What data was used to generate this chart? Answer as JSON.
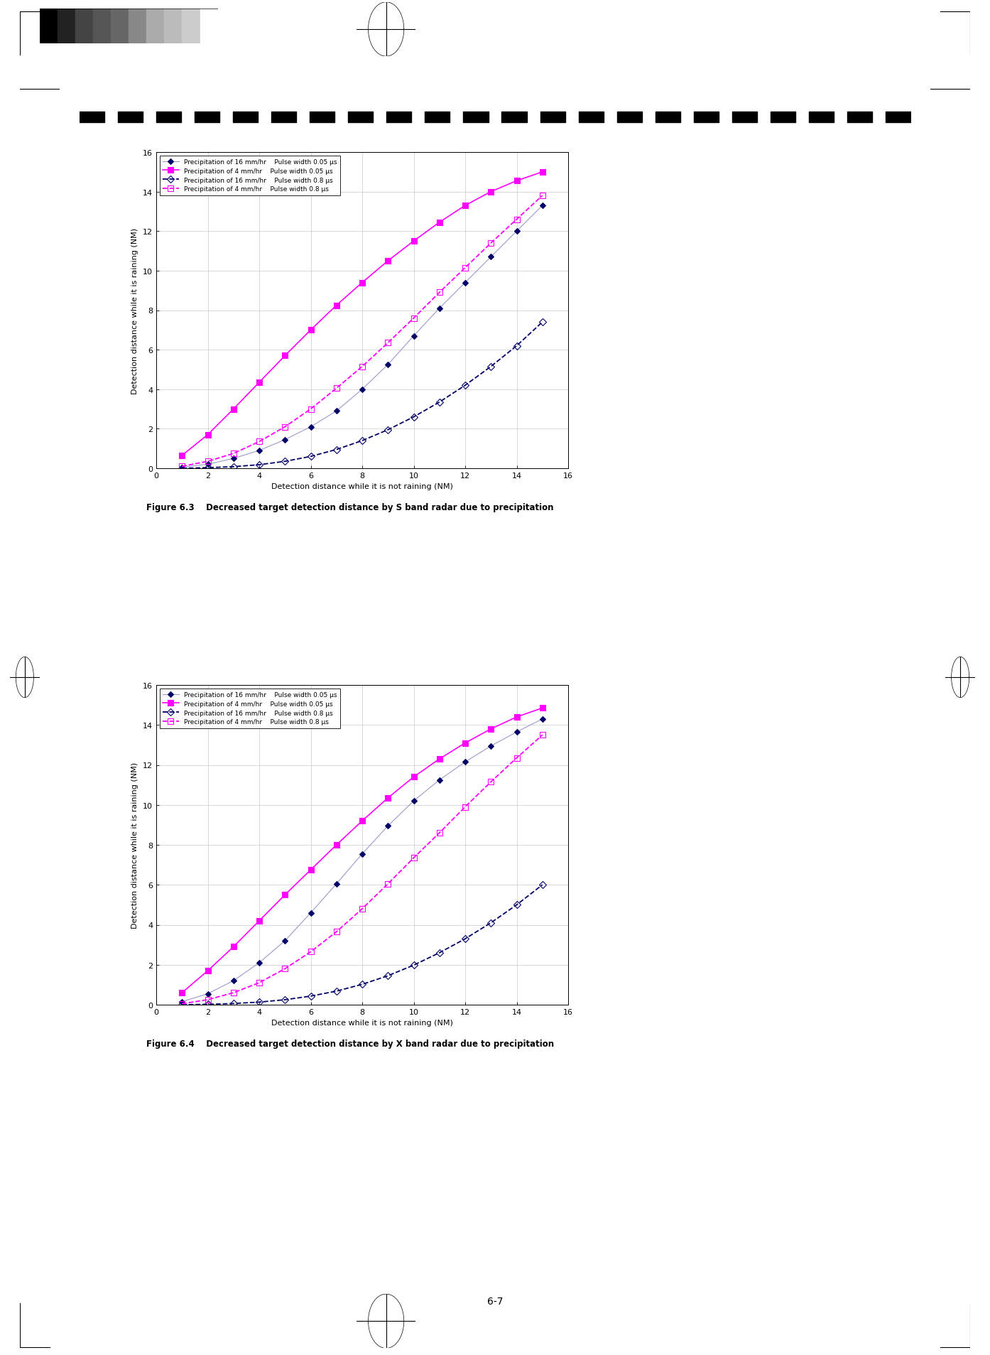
{
  "fig_width": 13.94,
  "fig_height": 19.08,
  "background_color": "#ffffff",
  "page_number": "6-7",
  "chart1": {
    "title": "Figure 6.3    Decreased target detection distance by S band radar due to precipitation",
    "xlabel": "Detection distance while it is not raining (NM)",
    "ylabel": "Detection distance while it is raining (NM)",
    "xlim": [
      0,
      16
    ],
    "ylim": [
      0,
      16
    ],
    "xticks": [
      0,
      2,
      4,
      6,
      8,
      10,
      12,
      14,
      16
    ],
    "yticks": [
      0,
      2,
      4,
      6,
      8,
      10,
      12,
      14,
      16
    ],
    "series": [
      {
        "label": "Precipitation of 16 mm/hr    Pulse width 0.05 μs",
        "color": "#9999cc",
        "linestyle": "solid",
        "linewidth": 0.8,
        "marker": "D",
        "markersize": 4,
        "markerfacecolor": "#000066",
        "markeredgecolor": "#000066",
        "x": [
          1,
          2,
          3,
          4,
          5,
          6,
          7,
          8,
          9,
          10,
          11,
          12,
          13,
          14,
          15
        ],
        "y": [
          0.05,
          0.2,
          0.5,
          0.9,
          1.45,
          2.1,
          2.9,
          4.0,
          5.25,
          6.7,
          8.1,
          9.4,
          10.7,
          12.0,
          13.3
        ]
      },
      {
        "label": "Precipitation of 4 mm/hr    Pulse width 0.05 μs",
        "color": "#FF00FF",
        "linestyle": "solid",
        "linewidth": 1.2,
        "marker": "s",
        "markersize": 6,
        "markerfacecolor": "#FF00FF",
        "markeredgecolor": "#FF00FF",
        "x": [
          1,
          2,
          3,
          4,
          5,
          6,
          7,
          8,
          9,
          10,
          11,
          12,
          13,
          14,
          15
        ],
        "y": [
          0.65,
          1.7,
          3.0,
          4.35,
          5.7,
          7.0,
          8.25,
          9.4,
          10.5,
          11.5,
          12.45,
          13.3,
          14.0,
          14.55,
          15.0
        ]
      },
      {
        "label": "Precipitation of 16 mm/hr    Pulse width 0.8 μs",
        "color": "#000066",
        "linestyle": "dashed",
        "linewidth": 1.3,
        "marker": "D",
        "markersize": 5,
        "markerfacecolor": "none",
        "markeredgecolor": "#000066",
        "x": [
          1,
          2,
          3,
          4,
          5,
          6,
          7,
          8,
          9,
          10,
          11,
          12,
          13,
          14,
          15
        ],
        "y": [
          0.0,
          0.03,
          0.08,
          0.18,
          0.35,
          0.6,
          0.95,
          1.4,
          1.95,
          2.6,
          3.35,
          4.2,
          5.15,
          6.2,
          7.4
        ]
      },
      {
        "label": "Precipitation of 4 mm/hr    Pulse width 0.8 μs",
        "color": "#FF00FF",
        "linestyle": "dashed",
        "linewidth": 1.3,
        "marker": "s",
        "markersize": 6,
        "markerfacecolor": "none",
        "markeredgecolor": "#FF00FF",
        "x": [
          1,
          2,
          3,
          4,
          5,
          6,
          7,
          8,
          9,
          10,
          11,
          12,
          13,
          14,
          15
        ],
        "y": [
          0.1,
          0.35,
          0.75,
          1.35,
          2.1,
          3.0,
          4.05,
          5.15,
          6.35,
          7.6,
          8.9,
          10.15,
          11.4,
          12.6,
          13.8
        ]
      }
    ]
  },
  "chart2": {
    "title": "Figure 6.4    Decreased target detection distance by X band radar due to precipitation",
    "xlabel": "Detection distance while it is not raining (NM)",
    "ylabel": "Detection distance while it is raining (NM)",
    "xlim": [
      0,
      16
    ],
    "ylim": [
      0,
      16
    ],
    "xticks": [
      0,
      2,
      4,
      6,
      8,
      10,
      12,
      14,
      16
    ],
    "yticks": [
      0,
      2,
      4,
      6,
      8,
      10,
      12,
      14,
      16
    ],
    "series": [
      {
        "label": "Precipitation of 16 mm/hr    Pulse width 0.05 μs",
        "color": "#9999cc",
        "linestyle": "solid",
        "linewidth": 0.8,
        "marker": "D",
        "markersize": 4,
        "markerfacecolor": "#000066",
        "markeredgecolor": "#000066",
        "x": [
          1,
          2,
          3,
          4,
          5,
          6,
          7,
          8,
          9,
          10,
          11,
          12,
          13,
          14,
          15
        ],
        "y": [
          0.15,
          0.55,
          1.2,
          2.1,
          3.2,
          4.6,
          6.05,
          7.55,
          8.95,
          10.2,
          11.25,
          12.15,
          12.95,
          13.65,
          14.3
        ]
      },
      {
        "label": "Precipitation of 4 mm/hr    Pulse width 0.05 μs",
        "color": "#FF00FF",
        "linestyle": "solid",
        "linewidth": 1.2,
        "marker": "s",
        "markersize": 6,
        "markerfacecolor": "#FF00FF",
        "markeredgecolor": "#FF00FF",
        "x": [
          1,
          2,
          3,
          4,
          5,
          6,
          7,
          8,
          9,
          10,
          11,
          12,
          13,
          14,
          15
        ],
        "y": [
          0.6,
          1.7,
          2.9,
          4.2,
          5.5,
          6.75,
          8.0,
          9.2,
          10.35,
          11.4,
          12.3,
          13.1,
          13.8,
          14.4,
          14.85
        ]
      },
      {
        "label": "Precipitation of 16 mm/hr    Pulse width 0.8 μs",
        "color": "#000066",
        "linestyle": "dashed",
        "linewidth": 1.3,
        "marker": "D",
        "markersize": 5,
        "markerfacecolor": "none",
        "markeredgecolor": "#000066",
        "x": [
          1,
          2,
          3,
          4,
          5,
          6,
          7,
          8,
          9,
          10,
          11,
          12,
          13,
          14,
          15
        ],
        "y": [
          0.0,
          0.02,
          0.06,
          0.13,
          0.25,
          0.43,
          0.68,
          1.02,
          1.45,
          1.98,
          2.6,
          3.3,
          4.1,
          5.0,
          6.0
        ]
      },
      {
        "label": "Precipitation of 4 mm/hr    Pulse width 0.8 μs",
        "color": "#FF00FF",
        "linestyle": "dashed",
        "linewidth": 1.3,
        "marker": "s",
        "markersize": 6,
        "markerfacecolor": "none",
        "markeredgecolor": "#FF00FF",
        "x": [
          1,
          2,
          3,
          4,
          5,
          6,
          7,
          8,
          9,
          10,
          11,
          12,
          13,
          14,
          15
        ],
        "y": [
          0.05,
          0.25,
          0.6,
          1.1,
          1.8,
          2.65,
          3.65,
          4.8,
          6.05,
          7.35,
          8.6,
          9.9,
          11.15,
          12.35,
          13.5
        ]
      }
    ]
  }
}
